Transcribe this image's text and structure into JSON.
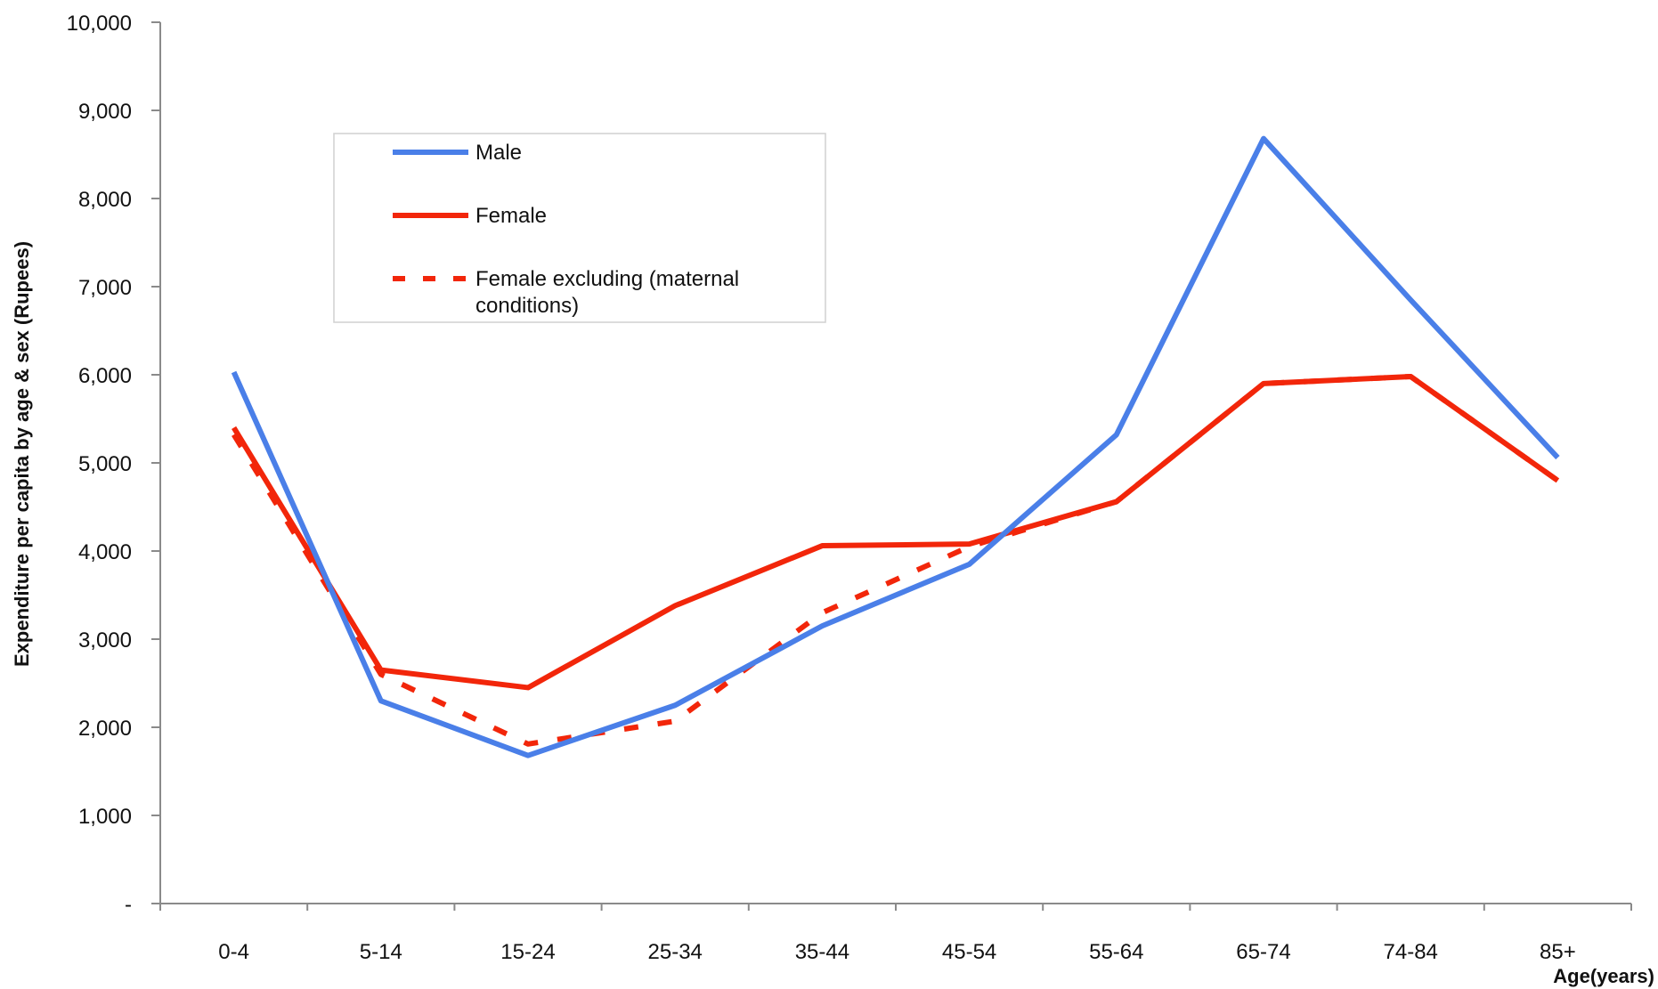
{
  "chart_data": {
    "type": "line",
    "title": "",
    "xlabel": "Age(years)",
    "ylabel": "Expenditure per capita by age & sex (Rupees)",
    "categories": [
      "0-4",
      "5-14",
      "15-24",
      "25-34",
      "35-44",
      "45-54",
      "55-64",
      "65-74",
      "74-84",
      "85+"
    ],
    "ylim": [
      0,
      10000
    ],
    "yticks": [
      0,
      1000,
      2000,
      3000,
      4000,
      5000,
      6000,
      7000,
      8000,
      9000,
      10000
    ],
    "ytick_labels": [
      "-",
      "1,000",
      "2,000",
      "3,000",
      "4,000",
      "5,000",
      "6,000",
      "7,000",
      "8,000",
      "9,000",
      "10,000"
    ],
    "grid": false,
    "legend_position": "top-left",
    "series": [
      {
        "name": "Male",
        "color": "#4a7fe8",
        "style": "solid",
        "values": [
          6030,
          2300,
          1680,
          2250,
          3150,
          3850,
          5320,
          8680,
          6850,
          5060
        ]
      },
      {
        "name": "Female",
        "color": "#f2260a",
        "style": "solid",
        "values": [
          5400,
          2650,
          2450,
          3380,
          4060,
          4080,
          4560,
          5900,
          5980,
          4800
        ]
      },
      {
        "name": "Female excluding (maternal conditions)",
        "color": "#f2260a",
        "style": "dashed",
        "values": [
          5320,
          2600,
          1810,
          2070,
          3300,
          4050,
          4560,
          5900,
          5980,
          4800
        ]
      }
    ]
  }
}
